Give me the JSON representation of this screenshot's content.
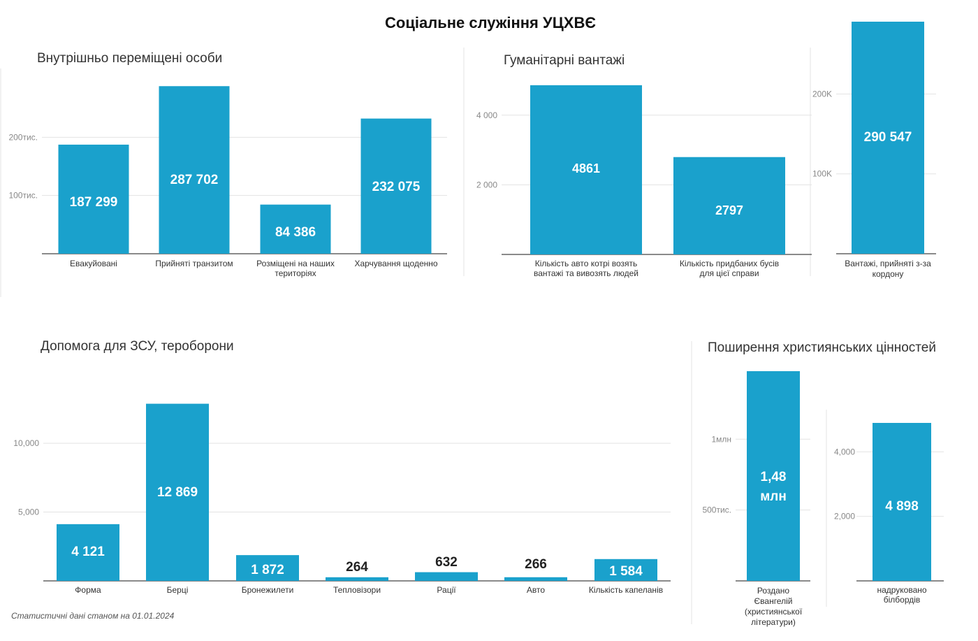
{
  "title": "Соціальне служіння УЦХВЄ",
  "footnote": "Статистичні дані станом на 01.01.2024",
  "colors": {
    "bar": "#1aa1cc",
    "grid": "#e3e3e3",
    "axis": "#444444",
    "value_in": "#ffffff",
    "value_out": "#222222"
  },
  "chart_data": [
    {
      "id": "vpo",
      "type": "bar",
      "title": "Внутрішньо переміщені особи",
      "categories": [
        [
          "Евакуйовані"
        ],
        [
          "Прийняті транзитом"
        ],
        [
          "Розміщені на наших",
          "територіях"
        ],
        [
          "Харчування щоденно"
        ]
      ],
      "values": [
        187299,
        287702,
        84386,
        232075
      ],
      "value_labels": [
        "187 299",
        "287 702",
        "84 386",
        "232 075"
      ],
      "yticks": [
        {
          "v": 100000,
          "label": "100тис."
        },
        {
          "v": 200000,
          "label": "200тис."
        }
      ],
      "ylim": [
        0,
        300000
      ]
    },
    {
      "id": "cargo",
      "type": "bar",
      "title": "Гуманітарні вантажі",
      "categories": [
        [
          "Кількість авто котрі возять",
          "вантажі та вивозять людей"
        ],
        [
          "Кількість придбаних бусів",
          "для цієї справи"
        ]
      ],
      "values": [
        4861,
        2797
      ],
      "value_labels": [
        "4861",
        "2797"
      ],
      "yticks": [
        {
          "v": 2000,
          "label": "2 000"
        },
        {
          "v": 4000,
          "label": "4 000"
        }
      ],
      "ylim": [
        0,
        5000
      ]
    },
    {
      "id": "border",
      "type": "bar",
      "title": "",
      "categories": [
        [
          "Вантажі, прийняті з-за",
          "кордону"
        ]
      ],
      "values": [
        290547
      ],
      "value_labels": [
        "290 547"
      ],
      "yticks": [
        {
          "v": 100000,
          "label": "100K"
        },
        {
          "v": 200000,
          "label": "200K"
        }
      ],
      "ylim": [
        0,
        290547
      ]
    },
    {
      "id": "zsu",
      "type": "bar",
      "title": "Допомога для ЗСУ, тероборони",
      "categories": [
        [
          "Форма"
        ],
        [
          "Берці"
        ],
        [
          "Бронежилети"
        ],
        [
          "Тепловізори"
        ],
        [
          "Рації"
        ],
        [
          "Авто"
        ],
        [
          "Кількість капеланів"
        ]
      ],
      "values": [
        4121,
        12869,
        1872,
        264,
        632,
        266,
        1584
      ],
      "value_labels": [
        "4 121",
        "12 869",
        "1 872",
        "264",
        "632",
        "266",
        "1 584"
      ],
      "yticks": [
        {
          "v": 5000,
          "label": "5,000"
        },
        {
          "v": 10000,
          "label": "10,000"
        }
      ],
      "ylim": [
        0,
        13000
      ]
    },
    {
      "id": "gospels",
      "type": "bar",
      "title": "Поширення християнських цінностей",
      "categories": [
        [
          "Роздано",
          "Євангелій",
          "(християнської",
          "літератури)"
        ]
      ],
      "values": [
        1480000
      ],
      "value_labels": [
        "1,48",
        "млн"
      ],
      "yticks": [
        {
          "v": 500000,
          "label": "500тис."
        },
        {
          "v": 1000000,
          "label": "1млн"
        }
      ],
      "ylim": [
        0,
        1480000
      ]
    },
    {
      "id": "billboards",
      "type": "bar",
      "title": "",
      "categories": [
        [
          "надруковано",
          "білбордів"
        ]
      ],
      "values": [
        4898
      ],
      "value_labels": [
        "4 898"
      ],
      "yticks": [
        {
          "v": 2000,
          "label": "2,000"
        },
        {
          "v": 4000,
          "label": "4,000"
        }
      ],
      "ylim": [
        0,
        4898
      ]
    }
  ]
}
